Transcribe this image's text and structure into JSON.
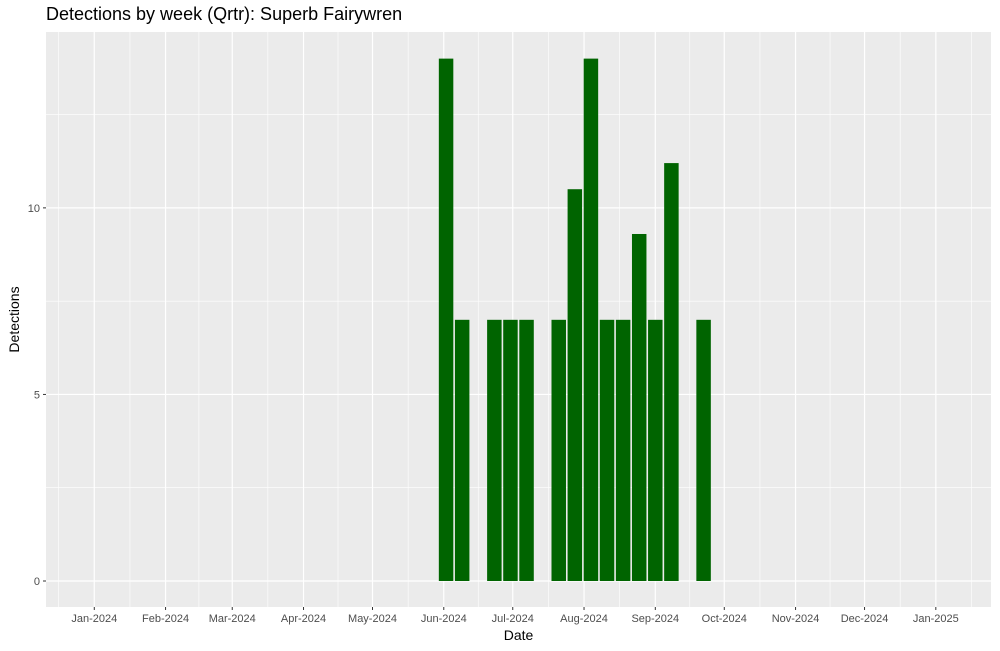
{
  "chart_data": {
    "type": "bar",
    "title": "Detections by week (Qrtr): Superb Fairywren",
    "xlabel": "Date",
    "ylabel": "Detections",
    "bar_color": "#006400",
    "panel_background": "#ebebeb",
    "grid": true,
    "legend": "none",
    "x_tick_labels": [
      "Jan-2024",
      "Feb-2024",
      "Mar-2024",
      "Apr-2024",
      "May-2024",
      "Jun-2024",
      "Jul-2024",
      "Aug-2024",
      "Sep-2024",
      "Oct-2024",
      "Nov-2024",
      "Dec-2024",
      "Jan-2025"
    ],
    "y_tick_labels": [
      "0",
      "5",
      "10"
    ],
    "ylim": [
      0,
      14.7
    ],
    "xlim": [
      "2023-12-11",
      "2025-01-25"
    ],
    "series": [
      {
        "values": [
          {
            "x": "2024-06-02",
            "y": 14
          },
          {
            "x": "2024-06-09",
            "y": 7
          },
          {
            "x": "2024-06-23",
            "y": 7
          },
          {
            "x": "2024-06-30",
            "y": 7
          },
          {
            "x": "2024-07-07",
            "y": 7
          },
          {
            "x": "2024-07-21",
            "y": 7
          },
          {
            "x": "2024-07-28",
            "y": 10.5
          },
          {
            "x": "2024-08-04",
            "y": 14
          },
          {
            "x": "2024-08-11",
            "y": 7
          },
          {
            "x": "2024-08-18",
            "y": 7
          },
          {
            "x": "2024-08-25",
            "y": 9.3
          },
          {
            "x": "2024-09-01",
            "y": 7
          },
          {
            "x": "2024-09-08",
            "y": 11.2
          },
          {
            "x": "2024-09-22",
            "y": 7
          }
        ]
      }
    ]
  }
}
